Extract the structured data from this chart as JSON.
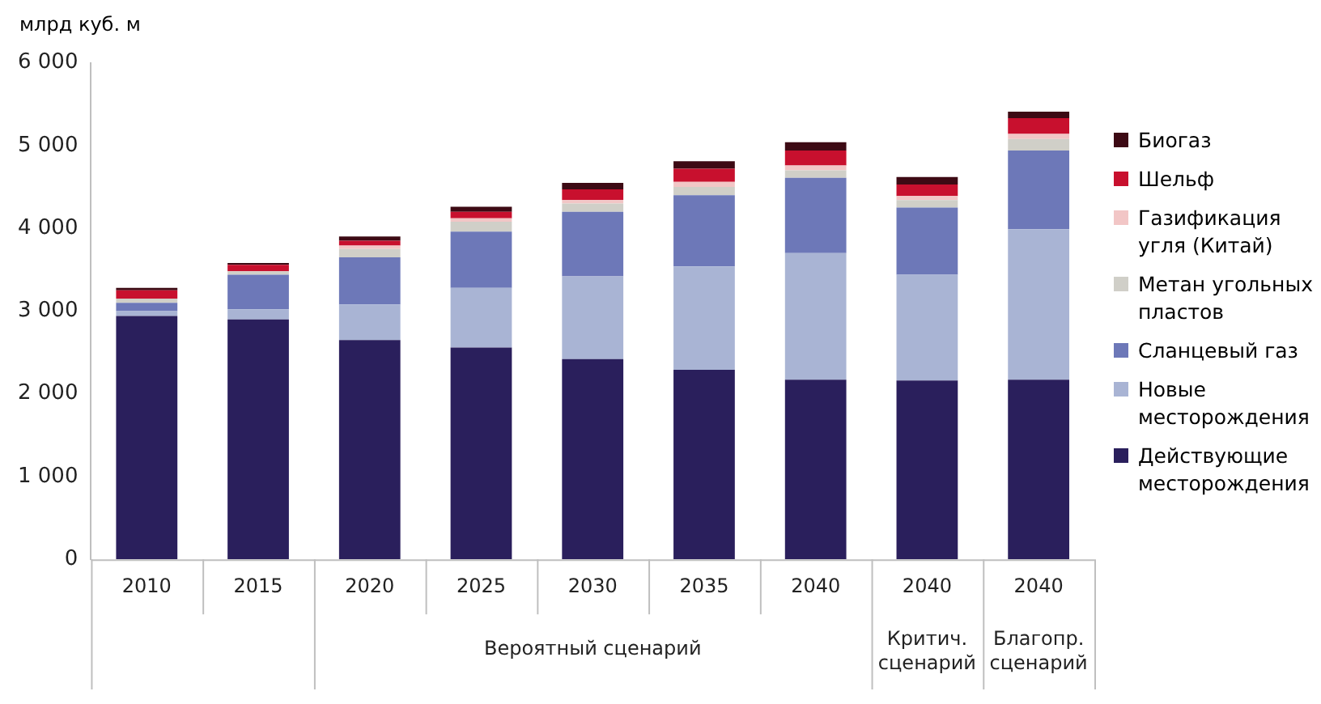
{
  "chart_data": {
    "type": "bar",
    "stacked": true,
    "ylabel": "млрд куб. м",
    "categories": [
      "2010",
      "2015",
      "2020",
      "2025",
      "2030",
      "2035",
      "2040",
      "2040",
      "2040"
    ],
    "annotations": [
      "Вероятный сценарий",
      "Критич. сценарий",
      "Благопр. сценарий"
    ],
    "series": [
      {
        "name": "Действующие месторождения",
        "color": "#2a1f5c",
        "values": [
          2940,
          2900,
          2650,
          2560,
          2420,
          2290,
          2170,
          2160,
          2170
        ]
      },
      {
        "name": "Новые месторождения",
        "color": "#a9b4d4",
        "values": [
          60,
          120,
          430,
          720,
          1000,
          1250,
          1530,
          1280,
          1820
        ]
      },
      {
        "name": "Сланцевый газ",
        "color": "#6d78b8",
        "values": [
          100,
          420,
          570,
          680,
          780,
          860,
          910,
          810,
          950
        ]
      },
      {
        "name": "Метан угольных пластов",
        "color": "#d0cfc8",
        "values": [
          50,
          40,
          100,
          120,
          100,
          100,
          90,
          90,
          140
        ]
      },
      {
        "name": "Газификация угля (Китай)",
        "color": "#f2c6c6",
        "values": [
          0,
          0,
          40,
          40,
          40,
          60,
          60,
          50,
          60
        ]
      },
      {
        "name": "Шельф",
        "color": "#c8102e",
        "values": [
          100,
          80,
          60,
          80,
          130,
          160,
          180,
          140,
          190
        ]
      },
      {
        "name": "Биогаз",
        "color": "#3d0a14",
        "values": [
          30,
          20,
          50,
          60,
          80,
          90,
          100,
          90,
          80
        ]
      }
    ],
    "ylim": [
      0,
      6000
    ],
    "yticks": [
      0,
      {
        "value": 1000,
        "label": "1 000"
      },
      {
        "value": 2000,
        "label": "2 000"
      },
      {
        "value": 3000,
        "label": "3 000"
      },
      {
        "value": 4000,
        "label": "4 000"
      },
      {
        "value": 5000,
        "label": "5 000"
      },
      {
        "value": 6000,
        "label": "6 000"
      }
    ],
    "grid": false,
    "legend": "right"
  }
}
